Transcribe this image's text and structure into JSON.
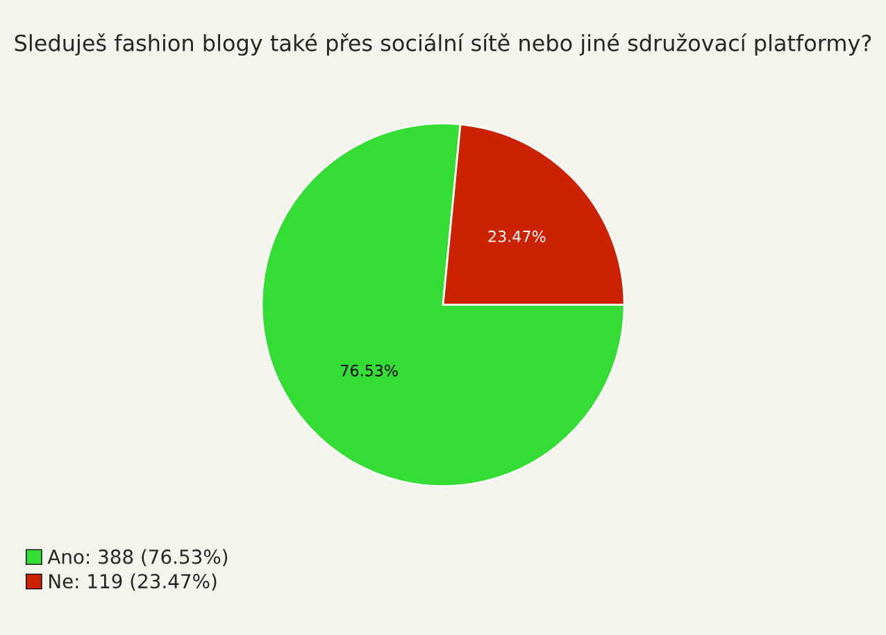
{
  "chart_data": {
    "type": "pie",
    "title": "Sleduješ fashion blogy také přes sociální sítě nebo jiné sdružovací platformy?",
    "categories": [
      "Ano: 388 (76.53%)",
      "Ne: 119 (23.47%)"
    ],
    "values": [
      76.53,
      23.47
    ],
    "colors": [
      "#33dd33",
      "#cc2200"
    ],
    "value_labels": [
      "76.53%",
      "23.47%"
    ],
    "legend": "bottom left"
  }
}
